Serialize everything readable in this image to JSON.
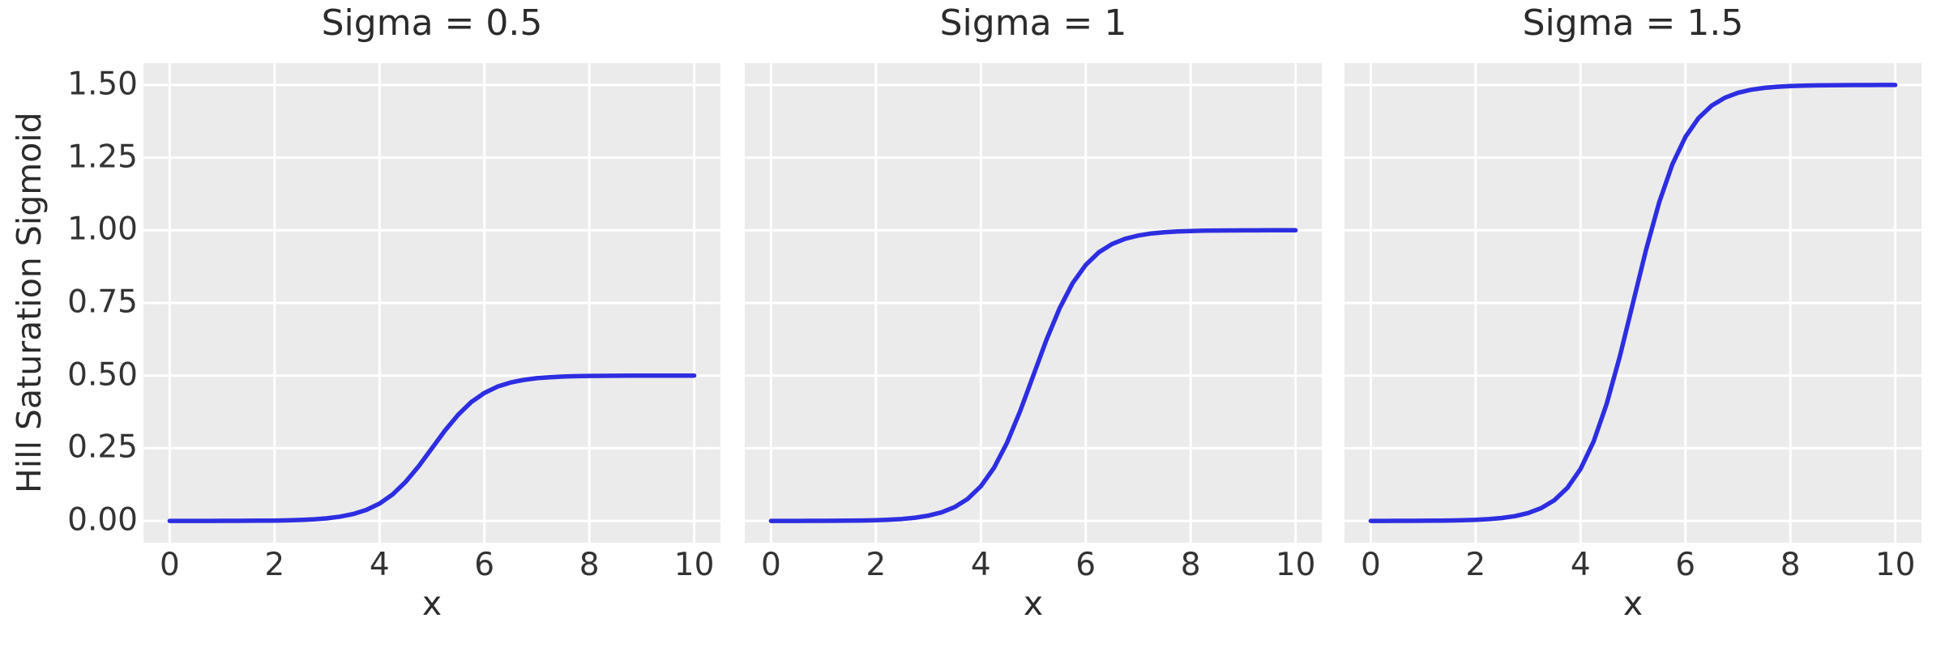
{
  "figure": {
    "ylabel": "Hill Saturation Sigmoid",
    "xlabel": "x",
    "colors": {
      "axes_background": "#ebebeb",
      "grid": "#ffffff",
      "line": "#2d2de1",
      "text": "#2b2b2b",
      "tick_text": "#333333"
    }
  },
  "chart_data": [
    {
      "type": "line",
      "title": "Sigma = 0.5",
      "xlabel": "x",
      "ylabel": "Hill Saturation Sigmoid",
      "xlim": [
        -0.5,
        10.5
      ],
      "ylim": [
        -0.075,
        1.575
      ],
      "grid": true,
      "legend": "none",
      "x_ticks": [
        0,
        2,
        4,
        6,
        8,
        10
      ],
      "x_tick_labels": [
        "0",
        "2",
        "4",
        "6",
        "8",
        "10"
      ],
      "y_ticks": [
        0,
        0.25,
        0.5,
        0.75,
        1.0,
        1.25,
        1.5
      ],
      "y_tick_labels": [
        "0.00",
        "0.25",
        "0.50",
        "0.75",
        "1.00",
        "1.25",
        "1.50"
      ],
      "show_y_tick_labels": true,
      "x": [
        0,
        0.25,
        0.5,
        0.75,
        1,
        1.25,
        1.5,
        1.75,
        2,
        2.25,
        2.5,
        2.75,
        3,
        3.25,
        3.5,
        3.75,
        4,
        4.25,
        4.5,
        4.75,
        5,
        5.25,
        5.5,
        5.75,
        6,
        6.25,
        6.5,
        6.75,
        7,
        7.25,
        7.5,
        7.75,
        8,
        8.25,
        8.5,
        8.75,
        9,
        9.25,
        9.5,
        9.75,
        10
      ],
      "y": [
        0,
        0,
        0.0001,
        0.0001,
        0.0002,
        0.0003,
        0.0005,
        0.0008,
        0.0012,
        0.002,
        0.0033,
        0.0055,
        0.009,
        0.0147,
        0.0237,
        0.0379,
        0.0596,
        0.0912,
        0.1345,
        0.1888,
        0.25,
        0.3112,
        0.3655,
        0.4088,
        0.4404,
        0.4621,
        0.4763,
        0.4853,
        0.491,
        0.4945,
        0.4967,
        0.498,
        0.4988,
        0.4992,
        0.4995,
        0.4997,
        0.4998,
        0.4999,
        0.4999,
        0.5,
        0.5
      ]
    },
    {
      "type": "line",
      "title": "Sigma = 1",
      "xlabel": "x",
      "ylabel": "Hill Saturation Sigmoid",
      "xlim": [
        -0.5,
        10.5
      ],
      "ylim": [
        -0.075,
        1.575
      ],
      "grid": true,
      "legend": "none",
      "x_ticks": [
        0,
        2,
        4,
        6,
        8,
        10
      ],
      "x_tick_labels": [
        "0",
        "2",
        "4",
        "6",
        "8",
        "10"
      ],
      "y_ticks": [
        0,
        0.25,
        0.5,
        0.75,
        1.0,
        1.25,
        1.5
      ],
      "y_tick_labels": [
        "0.00",
        "0.25",
        "0.50",
        "0.75",
        "1.00",
        "1.25",
        "1.50"
      ],
      "show_y_tick_labels": false,
      "x": [
        0,
        0.25,
        0.5,
        0.75,
        1,
        1.25,
        1.5,
        1.75,
        2,
        2.25,
        2.5,
        2.75,
        3,
        3.25,
        3.5,
        3.75,
        4,
        4.25,
        4.5,
        4.75,
        5,
        5.25,
        5.5,
        5.75,
        6,
        6.25,
        6.5,
        6.75,
        7,
        7.25,
        7.5,
        7.75,
        8,
        8.25,
        8.5,
        8.75,
        9,
        9.25,
        9.5,
        9.75,
        10
      ],
      "y": [
        0,
        0.0001,
        0.0001,
        0.0002,
        0.0003,
        0.0006,
        0.0009,
        0.0015,
        0.0025,
        0.0041,
        0.0067,
        0.011,
        0.018,
        0.0293,
        0.0474,
        0.0759,
        0.1192,
        0.1824,
        0.2689,
        0.3775,
        0.5,
        0.6225,
        0.7311,
        0.8176,
        0.8808,
        0.9241,
        0.9526,
        0.9707,
        0.982,
        0.989,
        0.9933,
        0.9959,
        0.9975,
        0.9985,
        0.9991,
        0.9994,
        0.9997,
        0.9998,
        0.9999,
        0.9999,
        1
      ]
    },
    {
      "type": "line",
      "title": "Sigma = 1.5",
      "xlabel": "x",
      "ylabel": "Hill Saturation Sigmoid",
      "xlim": [
        -0.5,
        10.5
      ],
      "ylim": [
        -0.075,
        1.575
      ],
      "grid": true,
      "legend": "none",
      "x_ticks": [
        0,
        2,
        4,
        6,
        8,
        10
      ],
      "x_tick_labels": [
        "0",
        "2",
        "4",
        "6",
        "8",
        "10"
      ],
      "y_ticks": [
        0,
        0.25,
        0.5,
        0.75,
        1.0,
        1.25,
        1.5
      ],
      "y_tick_labels": [
        "0.00",
        "0.25",
        "0.50",
        "0.75",
        "1.00",
        "1.25",
        "1.50"
      ],
      "show_y_tick_labels": false,
      "x": [
        0,
        0.25,
        0.5,
        0.75,
        1,
        1.25,
        1.5,
        1.75,
        2,
        2.25,
        2.5,
        2.75,
        3,
        3.25,
        3.5,
        3.75,
        4,
        4.25,
        4.5,
        4.75,
        5,
        5.25,
        5.5,
        5.75,
        6,
        6.25,
        6.5,
        6.75,
        7,
        7.25,
        7.5,
        7.75,
        8,
        8.25,
        8.5,
        8.75,
        9,
        9.25,
        9.5,
        9.75,
        10
      ],
      "y": [
        0.0001,
        0.0001,
        0.0002,
        0.0003,
        0.0005,
        0.0008,
        0.0014,
        0.0023,
        0.0037,
        0.0061,
        0.01,
        0.0165,
        0.027,
        0.044,
        0.0711,
        0.1138,
        0.1788,
        0.2736,
        0.4034,
        0.5663,
        0.75,
        0.9337,
        1.0966,
        1.2264,
        1.3212,
        1.3862,
        1.4289,
        1.456,
        1.473,
        1.4835,
        1.49,
        1.4939,
        1.4963,
        1.4977,
        1.4986,
        1.4992,
        1.4995,
        1.4997,
        1.4998,
        1.4999,
        1.4999
      ]
    }
  ]
}
